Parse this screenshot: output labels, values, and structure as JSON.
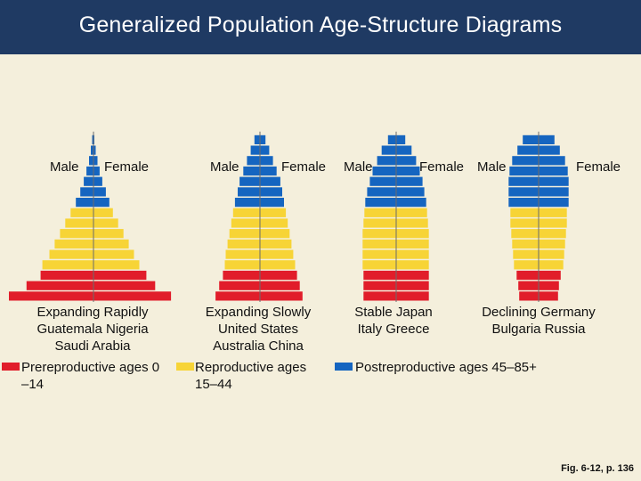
{
  "title": "Generalized Population Age-Structure Diagrams",
  "colors": {
    "background": "#f4efdc",
    "title_bar": "#1f3a63",
    "prereproductive": "#e11d2a",
    "reproductive": "#f7d436",
    "postreproductive": "#1565c0"
  },
  "diagrams": [
    {
      "male_label": "Male",
      "female_label": "Female",
      "caption": "Expanding Rapidly\nGuatemala Nigeria\nSaudi Arabia",
      "male": [
        {
          "group": "pre",
          "value": 9.6
        },
        {
          "group": "pre",
          "value": 7.6
        },
        {
          "group": "pre",
          "value": 6.0
        },
        {
          "group": "rep",
          "value": 5.8
        },
        {
          "group": "rep",
          "value": 5.0
        },
        {
          "group": "rep",
          "value": 4.4
        },
        {
          "group": "rep",
          "value": 3.8
        },
        {
          "group": "rep",
          "value": 3.2
        },
        {
          "group": "rep",
          "value": 2.6
        },
        {
          "group": "post",
          "value": 2.0
        },
        {
          "group": "post",
          "value": 1.5
        },
        {
          "group": "post",
          "value": 1.1
        },
        {
          "group": "post",
          "value": 0.8
        },
        {
          "group": "post",
          "value": 0.5
        },
        {
          "group": "post",
          "value": 0.3
        },
        {
          "group": "post",
          "value": 0.15
        }
      ],
      "female": [
        {
          "group": "pre",
          "value": 8.8
        },
        {
          "group": "pre",
          "value": 7.0
        },
        {
          "group": "pre",
          "value": 6.0
        },
        {
          "group": "rep",
          "value": 5.2
        },
        {
          "group": "rep",
          "value": 4.6
        },
        {
          "group": "rep",
          "value": 4.0
        },
        {
          "group": "rep",
          "value": 3.4
        },
        {
          "group": "rep",
          "value": 2.8
        },
        {
          "group": "rep",
          "value": 2.2
        },
        {
          "group": "post",
          "value": 1.8
        },
        {
          "group": "post",
          "value": 1.4
        },
        {
          "group": "post",
          "value": 1.0
        },
        {
          "group": "post",
          "value": 0.7
        },
        {
          "group": "post",
          "value": 0.45
        },
        {
          "group": "post",
          "value": 0.25
        },
        {
          "group": "post",
          "value": 0.1
        }
      ]
    },
    {
      "male_label": "Male",
      "female_label": "Female",
      "caption": "Expanding Slowly\nUnited States\nAustralia China",
      "male": [
        {
          "group": "pre",
          "value": 4.8
        },
        {
          "group": "pre",
          "value": 4.4
        },
        {
          "group": "pre",
          "value": 4.0
        },
        {
          "group": "rep",
          "value": 3.8
        },
        {
          "group": "rep",
          "value": 3.7
        },
        {
          "group": "rep",
          "value": 3.5
        },
        {
          "group": "rep",
          "value": 3.3
        },
        {
          "group": "rep",
          "value": 3.1
        },
        {
          "group": "rep",
          "value": 2.9
        },
        {
          "group": "post",
          "value": 2.7
        },
        {
          "group": "post",
          "value": 2.4
        },
        {
          "group": "post",
          "value": 2.2
        },
        {
          "group": "post",
          "value": 1.8
        },
        {
          "group": "post",
          "value": 1.4
        },
        {
          "group": "post",
          "value": 1.0
        },
        {
          "group": "post",
          "value": 0.6
        }
      ],
      "female": [
        {
          "group": "pre",
          "value": 4.6
        },
        {
          "group": "pre",
          "value": 4.3
        },
        {
          "group": "pre",
          "value": 4.0
        },
        {
          "group": "rep",
          "value": 3.8
        },
        {
          "group": "rep",
          "value": 3.6
        },
        {
          "group": "rep",
          "value": 3.4
        },
        {
          "group": "rep",
          "value": 3.2
        },
        {
          "group": "rep",
          "value": 3.0
        },
        {
          "group": "rep",
          "value": 2.8
        },
        {
          "group": "post",
          "value": 2.6
        },
        {
          "group": "post",
          "value": 2.4
        },
        {
          "group": "post",
          "value": 2.2
        },
        {
          "group": "post",
          "value": 1.8
        },
        {
          "group": "post",
          "value": 1.4
        },
        {
          "group": "post",
          "value": 1.0
        },
        {
          "group": "post",
          "value": 0.6
        }
      ]
    },
    {
      "male_label": "Male",
      "female_label": "Female",
      "caption": "Stable Japan\nItaly Greece",
      "male": [
        {
          "group": "pre",
          "value": 3.6
        },
        {
          "group": "pre",
          "value": 3.6
        },
        {
          "group": "pre",
          "value": 3.6
        },
        {
          "group": "rep",
          "value": 3.7
        },
        {
          "group": "rep",
          "value": 3.7
        },
        {
          "group": "rep",
          "value": 3.7
        },
        {
          "group": "rep",
          "value": 3.7
        },
        {
          "group": "rep",
          "value": 3.6
        },
        {
          "group": "rep",
          "value": 3.5
        },
        {
          "group": "post",
          "value": 3.4
        },
        {
          "group": "post",
          "value": 3.2
        },
        {
          "group": "post",
          "value": 2.9
        },
        {
          "group": "post",
          "value": 2.6
        },
        {
          "group": "post",
          "value": 2.1
        },
        {
          "group": "post",
          "value": 1.6
        },
        {
          "group": "post",
          "value": 0.9
        }
      ],
      "female": [
        {
          "group": "pre",
          "value": 3.6
        },
        {
          "group": "pre",
          "value": 3.6
        },
        {
          "group": "pre",
          "value": 3.6
        },
        {
          "group": "rep",
          "value": 3.6
        },
        {
          "group": "rep",
          "value": 3.6
        },
        {
          "group": "rep",
          "value": 3.6
        },
        {
          "group": "rep",
          "value": 3.6
        },
        {
          "group": "rep",
          "value": 3.5
        },
        {
          "group": "rep",
          "value": 3.4
        },
        {
          "group": "post",
          "value": 3.3
        },
        {
          "group": "post",
          "value": 3.1
        },
        {
          "group": "post",
          "value": 2.9
        },
        {
          "group": "post",
          "value": 2.6
        },
        {
          "group": "post",
          "value": 2.2
        },
        {
          "group": "post",
          "value": 1.7
        },
        {
          "group": "post",
          "value": 1.0
        }
      ]
    },
    {
      "male_label": "Male",
      "female_label": "Female",
      "caption": "Declining Germany\nBulgaria Russia",
      "male": [
        {
          "group": "pre",
          "value": 2.2
        },
        {
          "group": "pre",
          "value": 2.3
        },
        {
          "group": "pre",
          "value": 2.5
        },
        {
          "group": "rep",
          "value": 2.8
        },
        {
          "group": "rep",
          "value": 2.9
        },
        {
          "group": "rep",
          "value": 3.0
        },
        {
          "group": "rep",
          "value": 3.1
        },
        {
          "group": "rep",
          "value": 3.2
        },
        {
          "group": "rep",
          "value": 3.2
        },
        {
          "group": "post",
          "value": 3.4
        },
        {
          "group": "post",
          "value": 3.4
        },
        {
          "group": "post",
          "value": 3.4
        },
        {
          "group": "post",
          "value": 3.3
        },
        {
          "group": "post",
          "value": 3.0
        },
        {
          "group": "post",
          "value": 2.4
        },
        {
          "group": "post",
          "value": 1.8
        }
      ],
      "female": [
        {
          "group": "pre",
          "value": 2.2
        },
        {
          "group": "pre",
          "value": 2.3
        },
        {
          "group": "pre",
          "value": 2.5
        },
        {
          "group": "rep",
          "value": 2.8
        },
        {
          "group": "rep",
          "value": 2.9
        },
        {
          "group": "rep",
          "value": 3.0
        },
        {
          "group": "rep",
          "value": 3.1
        },
        {
          "group": "rep",
          "value": 3.2
        },
        {
          "group": "rep",
          "value": 3.2
        },
        {
          "group": "post",
          "value": 3.4
        },
        {
          "group": "post",
          "value": 3.4
        },
        {
          "group": "post",
          "value": 3.4
        },
        {
          "group": "post",
          "value": 3.3
        },
        {
          "group": "post",
          "value": 3.0
        },
        {
          "group": "post",
          "value": 2.4
        },
        {
          "group": "post",
          "value": 1.8
        }
      ]
    }
  ],
  "legend": [
    {
      "key": "pre",
      "label": "Prereproductive ages 0\n–14"
    },
    {
      "key": "rep",
      "label": "Reproductive ages\n15–44"
    },
    {
      "key": "post",
      "label": "Postreproductive ages 45–85+"
    }
  ],
  "figure_ref": "Fig. 6-12, p. 136"
}
